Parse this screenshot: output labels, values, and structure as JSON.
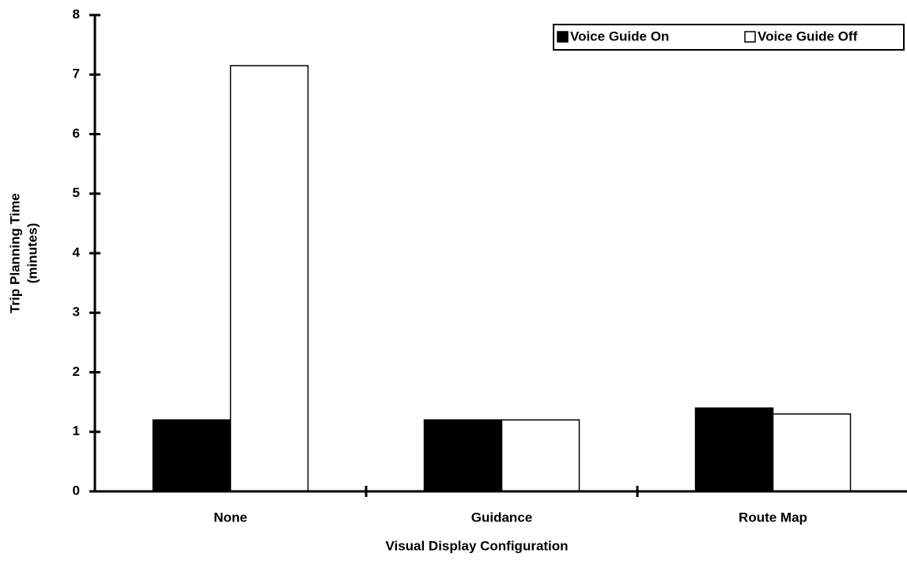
{
  "chart_data": {
    "type": "bar",
    "xlabel": "Visual Display Configuration",
    "ylabel": [
      "Trip Planning Time",
      "(minutes)"
    ],
    "categories": [
      "None",
      "Guidance",
      "Route Map"
    ],
    "series": [
      {
        "name": "Voice Guide On",
        "color": "#000000",
        "values": [
          1.2,
          1.2,
          1.4
        ]
      },
      {
        "name": "Voice Guide Off",
        "color": "#ffffff",
        "values": [
          7.15,
          1.2,
          1.3
        ]
      }
    ],
    "ylim": [
      0,
      8
    ],
    "yticks": [
      0,
      1,
      2,
      3,
      4,
      5,
      6,
      7,
      8
    ],
    "grid": false,
    "legend": "upper right"
  }
}
